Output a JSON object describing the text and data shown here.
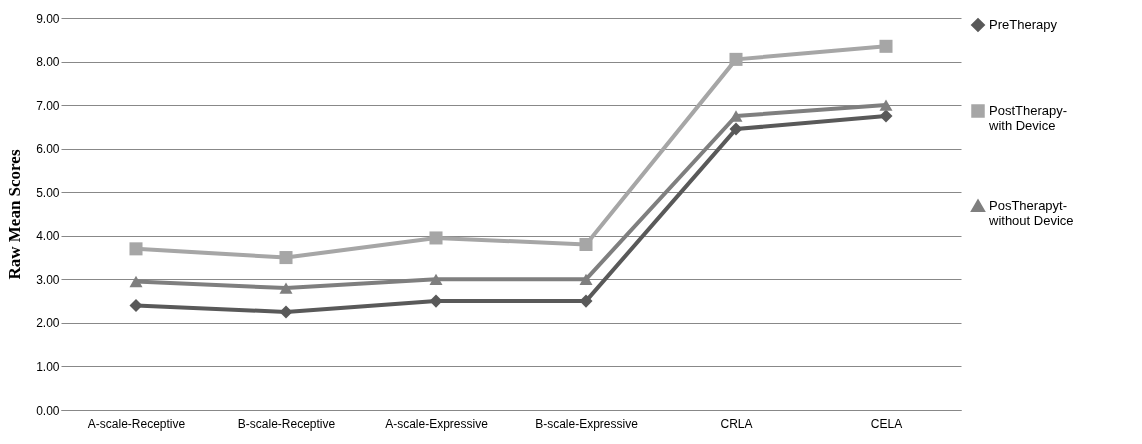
{
  "chart_data": {
    "type": "line",
    "ylabel": "Raw Mean Scores",
    "categories": [
      "A-scale-Receptive",
      "B-scale-Receptive",
      "A-scale-Expressive",
      "B-scale-Expressive",
      "CRLA",
      "CELA"
    ],
    "series": [
      {
        "name": "PreTherapy",
        "color": "#595959",
        "marker": "diamond",
        "values": [
          2.4,
          2.25,
          2.5,
          2.5,
          6.45,
          6.75
        ]
      },
      {
        "name": "PostTherapy-with Device",
        "color": "#a6a6a6",
        "marker": "square",
        "values": [
          3.7,
          3.5,
          3.95,
          3.8,
          8.05,
          8.35
        ]
      },
      {
        "name": "PosTherapyt-without Device",
        "color": "#7f7f7f",
        "marker": "triangle",
        "values": [
          2.95,
          2.8,
          3.0,
          3.0,
          6.75,
          7.0
        ]
      }
    ],
    "ylim": [
      0,
      9
    ],
    "yticks": [
      {
        "value": 0,
        "label": "0.00"
      },
      {
        "value": 1,
        "label": "1.00"
      },
      {
        "value": 2,
        "label": "2.00"
      },
      {
        "value": 3,
        "label": "3.00"
      },
      {
        "value": 4,
        "label": "4.00"
      },
      {
        "value": 5,
        "label": "5.00"
      },
      {
        "value": 6,
        "label": "6.00"
      },
      {
        "value": 7,
        "label": "7.00"
      },
      {
        "value": 8,
        "label": "8.00"
      },
      {
        "value": 9,
        "label": "9.00"
      }
    ],
    "grid": "y",
    "legend": "right",
    "line_style": "solid"
  }
}
